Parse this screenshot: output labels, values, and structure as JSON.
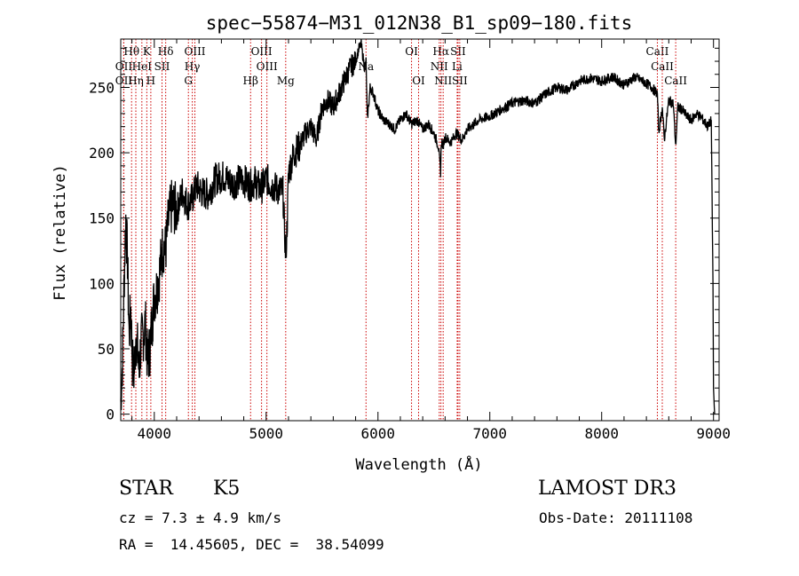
{
  "chart_data": {
    "type": "line",
    "title": "spec−55874−M31_012N38_B1_sp09−180.fits",
    "xlabel": "Wavelength (Å)",
    "ylabel": "Flux (relative)",
    "xlim": [
      3700,
      9050
    ],
    "ylim": [
      -5,
      287
    ],
    "xticks": [
      4000,
      5000,
      6000,
      7000,
      8000,
      9000
    ],
    "yticks": [
      0,
      50,
      100,
      150,
      200,
      250
    ],
    "grid": false,
    "series": [
      {
        "name": "flux",
        "x": [
          3700,
          3715,
          3730,
          3745,
          3760,
          3775,
          3790,
          3805,
          3820,
          3835,
          3850,
          3865,
          3880,
          3900,
          3920,
          3940,
          3960,
          3980,
          4000,
          4020,
          4050,
          4080,
          4100,
          4130,
          4160,
          4200,
          4250,
          4300,
          4340,
          4380,
          4420,
          4480,
          4550,
          4620,
          4700,
          4780,
          4860,
          4900,
          4950,
          5000,
          5050,
          5100,
          5150,
          5175,
          5190,
          5200,
          5250,
          5300,
          5350,
          5400,
          5450,
          5500,
          5550,
          5600,
          5650,
          5700,
          5750,
          5800,
          5830,
          5850,
          5880,
          5893,
          5905,
          5930,
          5960,
          6000,
          6050,
          6100,
          6150,
          6200,
          6250,
          6300,
          6350,
          6400,
          6450,
          6500,
          6540,
          6560,
          6563,
          6570,
          6580,
          6600,
          6650,
          6700,
          6750,
          6800,
          6900,
          7000,
          7100,
          7200,
          7300,
          7400,
          7500,
          7600,
          7700,
          7800,
          7900,
          8000,
          8100,
          8200,
          8300,
          8400,
          8450,
          8498,
          8510,
          8542,
          8560,
          8600,
          8640,
          8662,
          8680,
          8720,
          8760,
          8800,
          8850,
          8900,
          8950,
          8980,
          8995,
          9000,
          9010
        ],
        "y": [
          10,
          40,
          100,
          150,
          120,
          60,
          80,
          40,
          30,
          60,
          50,
          30,
          55,
          60,
          70,
          40,
          50,
          70,
          90,
          95,
          110,
          130,
          125,
          150,
          160,
          155,
          170,
          160,
          165,
          175,
          170,
          168,
          180,
          182,
          176,
          180,
          175,
          178,
          172,
          180,
          175,
          172,
          170,
          120,
          150,
          185,
          200,
          205,
          215,
          220,
          210,
          235,
          240,
          235,
          245,
          255,
          265,
          270,
          280,
          283,
          265,
          270,
          225,
          250,
          245,
          232,
          225,
          222,
          218,
          225,
          230,
          222,
          225,
          218,
          222,
          215,
          205,
          185,
          200,
          210,
          205,
          212,
          208,
          215,
          210,
          218,
          225,
          228,
          233,
          238,
          240,
          238,
          245,
          250,
          248,
          255,
          257,
          255,
          258,
          252,
          258,
          253,
          250,
          245,
          215,
          235,
          210,
          240,
          238,
          205,
          235,
          233,
          228,
          225,
          230,
          226,
          220,
          225,
          100,
          20,
          0
        ]
      }
    ],
    "lines_row1": [
      {
        "label": "Hθ",
        "x": 3797
      },
      {
        "label": "K",
        "x": 3933
      },
      {
        "label": "Hδ",
        "x": 4102
      },
      {
        "label": "OIII",
        "x": 4363
      },
      {
        "label": "OIII",
        "x": 4959
      },
      {
        "label": "OI",
        "x": 6300
      },
      {
        "label": "Hα",
        "x": 6563
      },
      {
        "label": "SII",
        "x": 6716
      },
      {
        "label": "CaII",
        "x": 8498
      }
    ],
    "lines_row2": [
      {
        "label": "OII",
        "x": 3727
      },
      {
        "label": "HeI",
        "x": 3889
      },
      {
        "label": "SII",
        "x": 4069
      },
      {
        "label": "Hγ",
        "x": 4340
      },
      {
        "label": "OIII",
        "x": 5007
      },
      {
        "label": "Na",
        "x": 5893
      },
      {
        "label": "NII",
        "x": 6548
      },
      {
        "label": "Li",
        "x": 6708
      },
      {
        "label": "CaII",
        "x": 8542
      }
    ],
    "lines_row3": [
      {
        "label": "OII",
        "x": 3727
      },
      {
        "label": "Hη",
        "x": 3835
      },
      {
        "label": "H",
        "x": 3969
      },
      {
        "label": "G",
        "x": 4305
      },
      {
        "label": "Hβ",
        "x": 4861
      },
      {
        "label": "Mg",
        "x": 5175
      },
      {
        "label": "OI",
        "x": 6363
      },
      {
        "label": "NII",
        "x": 6583
      },
      {
        "label": "SII",
        "x": 6731
      },
      {
        "label": "CaII",
        "x": 8662
      }
    ],
    "colors": {
      "axes": "#000000",
      "spectrum": "#000000",
      "line_markers": "#cc0000"
    }
  },
  "info": {
    "class": "STAR",
    "subclass": "K5",
    "survey": "LAMOST DR3",
    "cz": "cz = 7.3 ± 4.9 km/s",
    "obs_date": "Obs-Date: 20111108",
    "coords": "RA =  14.45605, DEC =  38.54099"
  }
}
